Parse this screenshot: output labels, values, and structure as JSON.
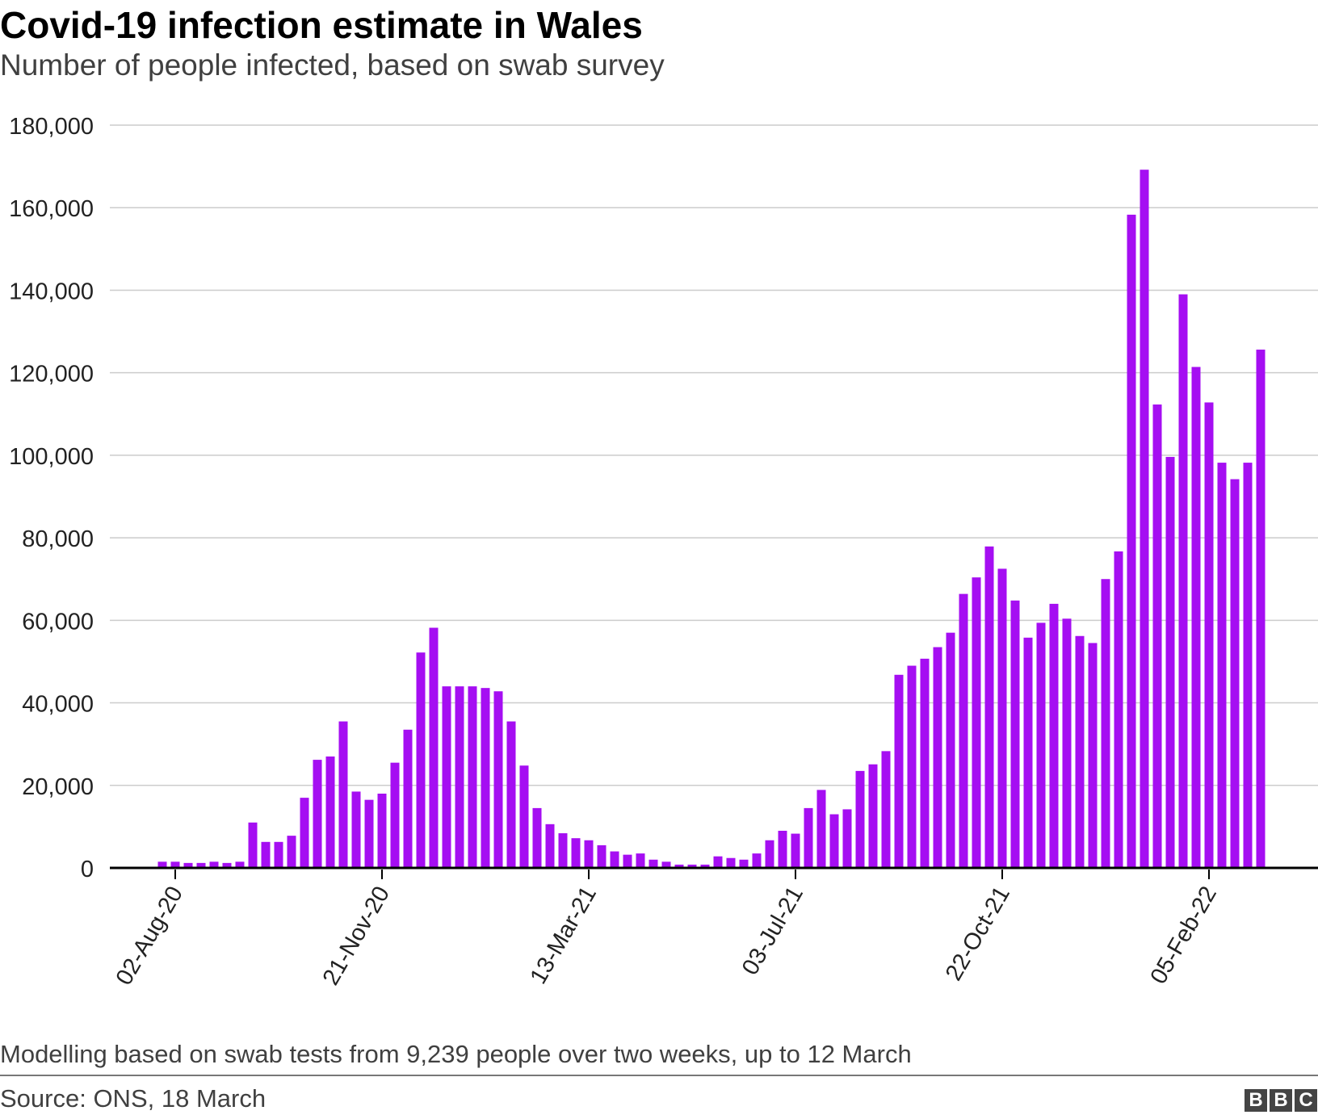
{
  "chart_data": {
    "type": "bar",
    "title": "Covid-19 infection estimate in Wales",
    "subtitle": "Number of people infected, based on swab survey",
    "xlabel": "",
    "ylabel": "",
    "ylim": [
      0,
      180000
    ],
    "y_ticks": [
      0,
      20000,
      40000,
      60000,
      80000,
      100000,
      120000,
      140000,
      160000,
      180000
    ],
    "y_tick_labels": [
      "0",
      "20,000",
      "40,000",
      "60,000",
      "80,000",
      "100,000",
      "120,000",
      "140,000",
      "160,000",
      "180,000"
    ],
    "x_tick_labels": [
      "02-Aug-20",
      "21-Nov-20",
      "13-Mar-21",
      "03-Jul-21",
      "22-Oct-21",
      "05-Feb-22"
    ],
    "x_tick_indices": [
      1,
      17,
      33,
      49,
      65,
      81
    ],
    "grid": true,
    "color": "#a50ef2",
    "values": [
      1500,
      1500,
      1200,
      1200,
      1500,
      1200,
      1500,
      11000,
      6300,
      6300,
      7800,
      17000,
      26200,
      27000,
      35500,
      18500,
      16500,
      18000,
      25500,
      33500,
      52200,
      58200,
      44000,
      44000,
      44000,
      43600,
      42800,
      35500,
      24800,
      14500,
      10600,
      8400,
      7200,
      6700,
      5500,
      4000,
      3200,
      3500,
      2000,
      1500,
      800,
      800,
      800,
      2800,
      2400,
      2000,
      3500,
      6700,
      9000,
      8300,
      14500,
      18900,
      13000,
      14200,
      23500,
      25100,
      28300,
      46800,
      49000,
      50700,
      53500,
      57000,
      66400,
      70400,
      77900,
      72500,
      64800,
      55800,
      59400,
      64000,
      60400,
      56200,
      54500,
      70000,
      76700,
      158300,
      169200,
      112300,
      99600,
      139000,
      121400,
      112800,
      98200,
      94200,
      98200,
      125600
    ]
  },
  "note": "Modelling based on swab tests from 9,239 people over two weeks, up to 12 March",
  "source": "Source: ONS, 18 March",
  "logo": [
    "B",
    "B",
    "C"
  ]
}
